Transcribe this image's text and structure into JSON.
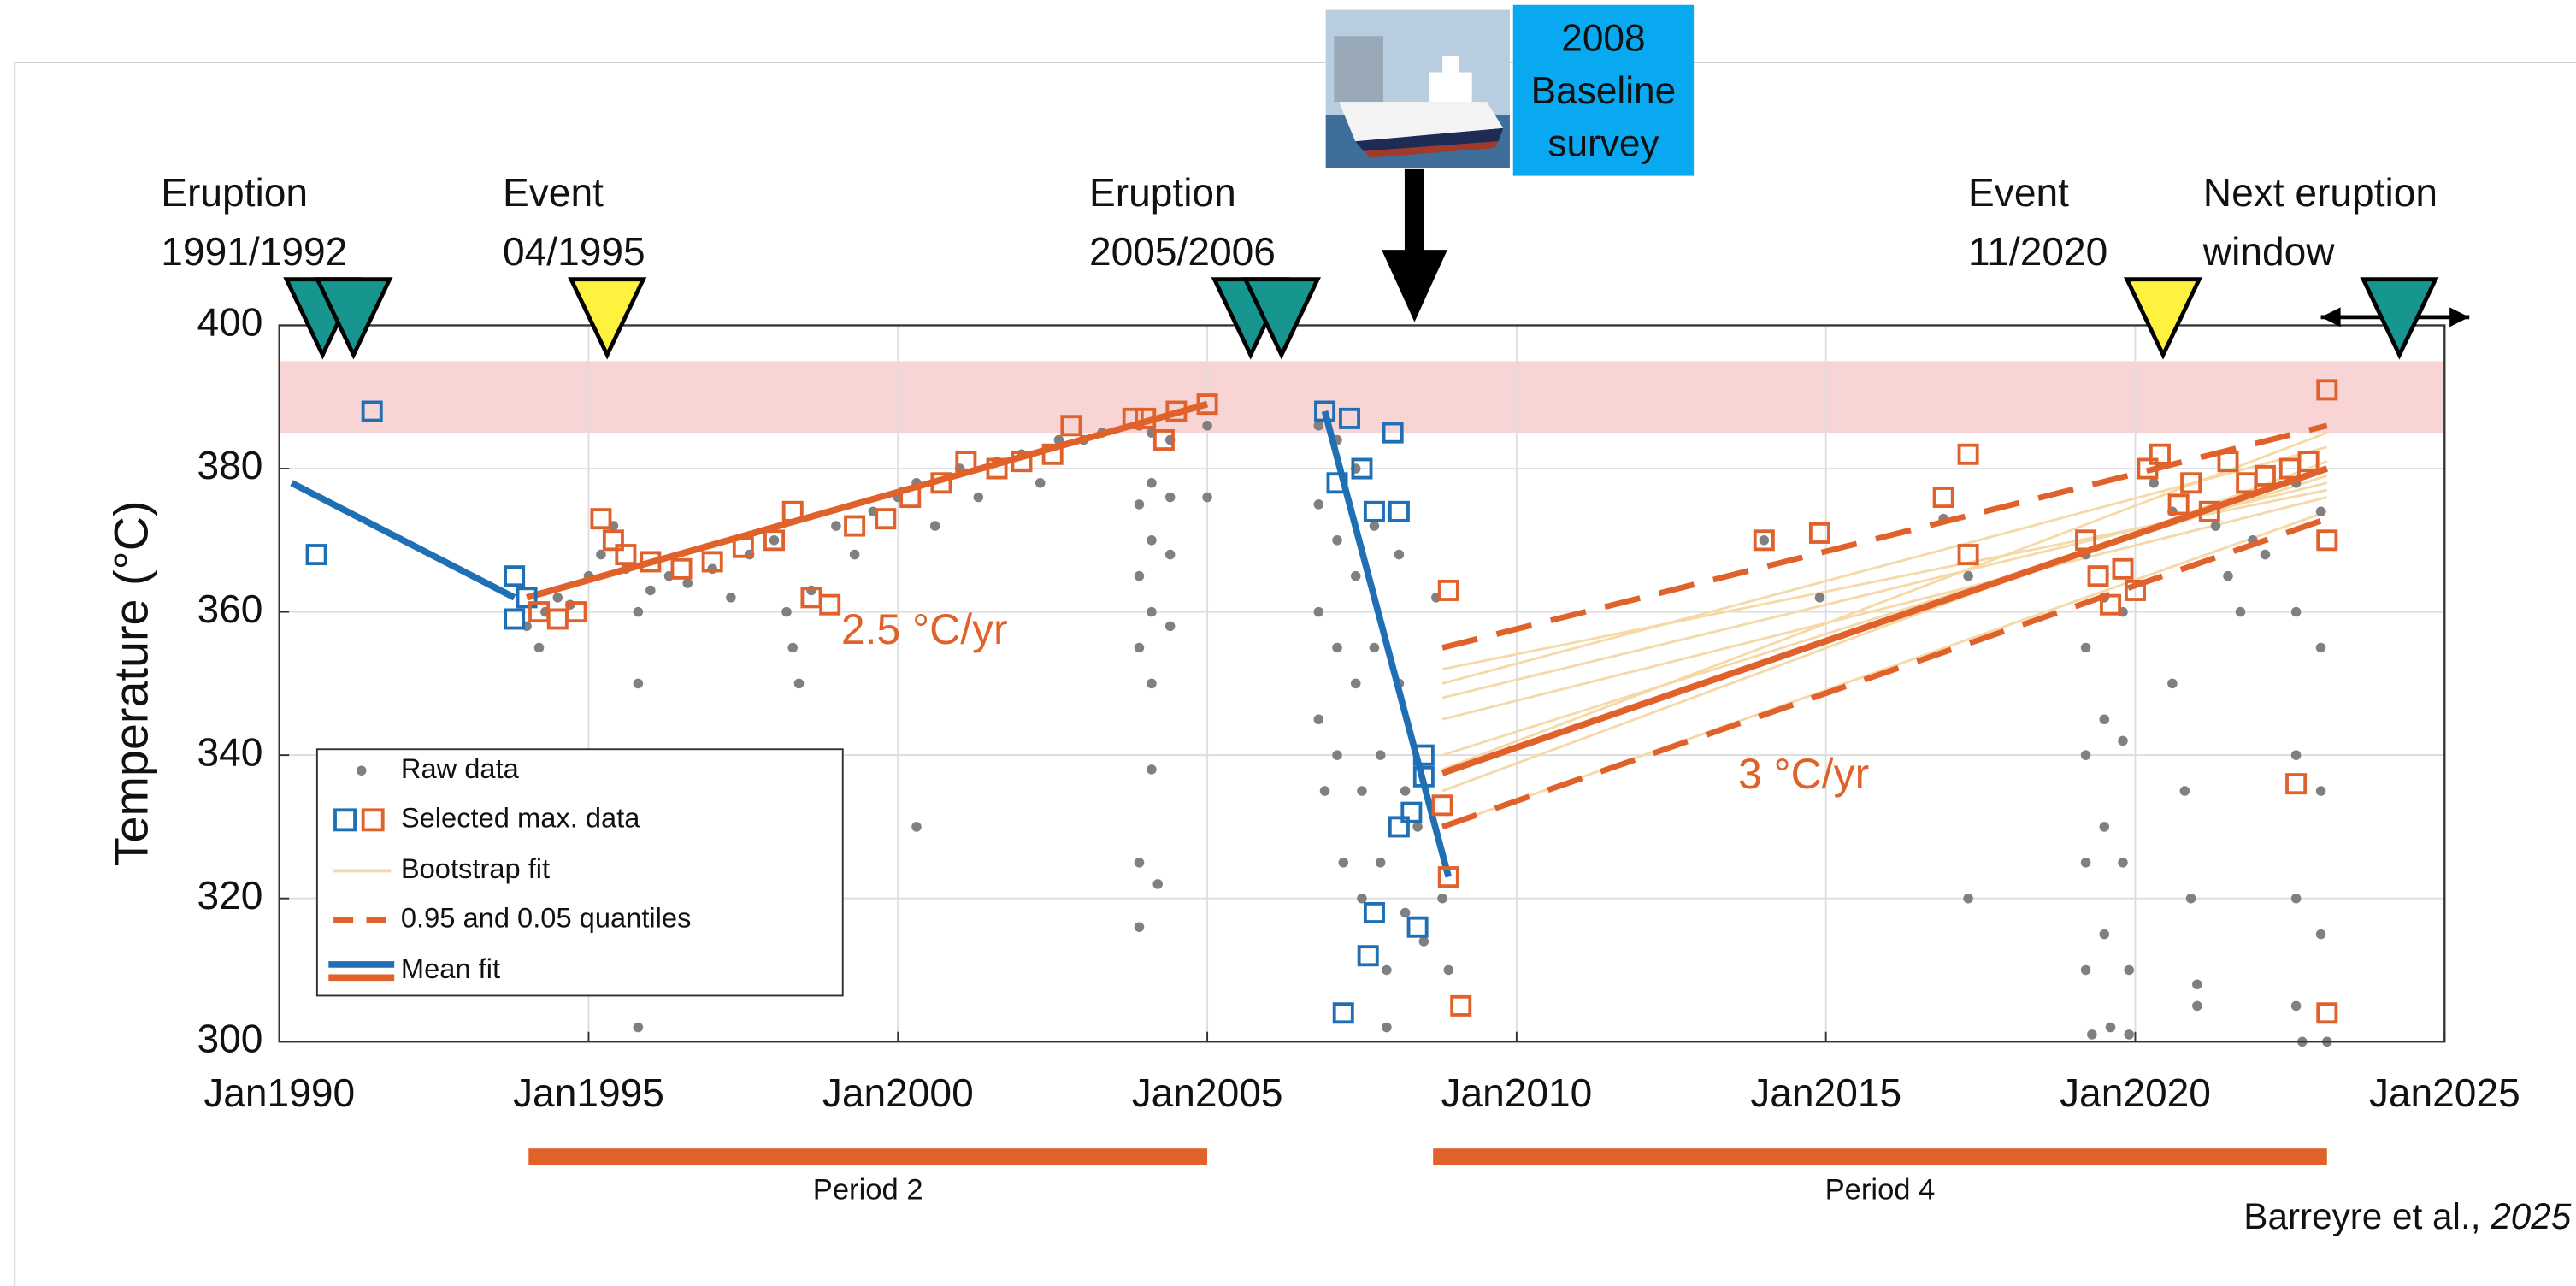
{
  "chart_data": {
    "type": "scatter",
    "y_label": "Temperature (°C)",
    "xlim": [
      1990,
      2025
    ],
    "ylim": [
      300,
      400
    ],
    "xticks": [
      {
        "value": 1990,
        "label": "Jan1990"
      },
      {
        "value": 1995,
        "label": "Jan1995"
      },
      {
        "value": 2000,
        "label": "Jan2000"
      },
      {
        "value": 2005,
        "label": "Jan2005"
      },
      {
        "value": 2010,
        "label": "Jan2010"
      },
      {
        "value": 2015,
        "label": "Jan2015"
      },
      {
        "value": 2020,
        "label": "Jan2020"
      },
      {
        "value": 2025,
        "label": "Jan2025"
      }
    ],
    "yticks": [
      300,
      320,
      340,
      360,
      380,
      400
    ],
    "grid": true,
    "shaded_range": [
      385,
      395
    ],
    "series": [
      {
        "style": "faint",
        "color": "#f5d9a8",
        "x": [
          2008.8,
          2023.1
        ],
        "values": [
          340,
          379
        ]
      },
      {
        "style": "faint",
        "color": "#f5d9a8",
        "x": [
          2008.8,
          2023.1
        ],
        "values": [
          345,
          376
        ]
      },
      {
        "style": "faint",
        "color": "#f5d9a8",
        "x": [
          2008.8,
          2023.1
        ],
        "values": [
          350,
          383
        ]
      },
      {
        "style": "faint",
        "color": "#f5d9a8",
        "x": [
          2008.8,
          2023.1
        ],
        "values": [
          335,
          381
        ]
      },
      {
        "style": "faint",
        "color": "#f5d9a8",
        "x": [
          2008.8,
          2023.1
        ],
        "values": [
          330,
          374
        ]
      },
      {
        "style": "faint",
        "color": "#f5d9a8",
        "x": [
          2008.8,
          2023.1
        ],
        "values": [
          348,
          378
        ]
      },
      {
        "style": "faint",
        "color": "#f5d9a8",
        "x": [
          2008.8,
          2023.1
        ],
        "values": [
          338,
          385
        ]
      },
      {
        "style": "faint",
        "color": "#f5d9a8",
        "x": [
          2008.8,
          2023.1
        ],
        "values": [
          352,
          377
        ]
      },
      {
        "style": "dots",
        "color": "#808080",
        "x": [
          1994.0,
          1994.2,
          1994.3,
          1994.5,
          1994.7,
          1995.0,
          1995.2,
          1995.4,
          1995.6,
          1995.8,
          1995.8,
          1995.8,
          1995.8,
          1995.8,
          1995.8,
          1995.8,
          1996.0,
          1996.3,
          1996.6,
          1997.0,
          1997.3,
          1997.6,
          1998.0,
          1998.2,
          1998.3,
          1998.4,
          1998.6,
          1999.0,
          1999.3,
          1999.6,
          2000.0,
          2000.3,
          2000.3,
          2000.6,
          2001.0,
          2001.3,
          2001.6,
          2002.0,
          2002.3,
          2002.6,
          2003.0,
          2003.3,
          2003.9,
          2003.9,
          2003.9,
          2003.9,
          2003.9,
          2003.9,
          2004.1,
          2004.1,
          2004.1,
          2004.1,
          2004.1,
          2004.1,
          2004.2,
          2004.4,
          2004.4,
          2004.4,
          2004.4,
          2005.0,
          2005.0,
          2006.8,
          2006.8,
          2006.8,
          2006.8,
          2006.9,
          2007.1,
          2007.1,
          2007.1,
          2007.1,
          2007.2,
          2007.4,
          2007.4,
          2007.4,
          2007.5,
          2007.5,
          2007.7,
          2007.7,
          2007.8,
          2007.8,
          2007.9,
          2007.9,
          2008.1,
          2008.1,
          2008.2,
          2008.2,
          2008.4,
          2008.5,
          2008.7,
          2008.8,
          2008.9,
          2014.0,
          2014.9,
          2016.9,
          2017.3,
          2017.3,
          2019.2,
          2019.2,
          2019.2,
          2019.2,
          2019.2,
          2019.3,
          2019.5,
          2019.5,
          2019.5,
          2019.5,
          2019.6,
          2019.8,
          2019.8,
          2019.8,
          2019.9,
          2019.9,
          2020.3,
          2020.6,
          2020.6,
          2020.8,
          2020.9,
          2021.0,
          2021.0,
          2021.3,
          2021.5,
          2021.7,
          2021.9,
          2022.1,
          2022.6,
          2022.6,
          2022.6,
          2022.6,
          2022.6,
          2022.7,
          2023.0,
          2023.0,
          2023.0,
          2023.0,
          2023.1
        ],
        "values": [
          358,
          355,
          360,
          362,
          361,
          365,
          368,
          372,
          366,
          360,
          350,
          340,
          330,
          320,
          310,
          302,
          363,
          365,
          364,
          366,
          362,
          368,
          370,
          360,
          355,
          350,
          363,
          372,
          368,
          374,
          376,
          378,
          330,
          372,
          380,
          376,
          381,
          382,
          378,
          384,
          384,
          385,
          386,
          375,
          365,
          355,
          325,
          316,
          385,
          378,
          370,
          360,
          350,
          338,
          322,
          384,
          376,
          368,
          358,
          386,
          376,
          386,
          375,
          360,
          345,
          335,
          384,
          370,
          355,
          340,
          325,
          380,
          365,
          350,
          335,
          320,
          372,
          355,
          340,
          325,
          310,
          302,
          368,
          350,
          335,
          318,
          330,
          314,
          362,
          320,
          310,
          370,
          362,
          373,
          365,
          320,
          368,
          355,
          340,
          325,
          310,
          301,
          362,
          345,
          330,
          315,
          302,
          360,
          342,
          325,
          310,
          301,
          378,
          374,
          350,
          335,
          320,
          305,
          308,
          372,
          365,
          360,
          370,
          368,
          378,
          360,
          340,
          320,
          305,
          300,
          374,
          355,
          335,
          315,
          300
        ]
      },
      {
        "style": "line",
        "color": "#1f6fb5",
        "x": [
          1990.2,
          1993.8
        ],
        "values": [
          378,
          362
        ]
      },
      {
        "style": "line",
        "color": "#1f6fb5",
        "x": [
          2006.9,
          2008.9
        ],
        "values": [
          388,
          323
        ]
      },
      {
        "style": "dashed",
        "color": "#e0622a",
        "x": [
          2008.8,
          2023.1
        ],
        "values": [
          355,
          386
        ]
      },
      {
        "style": "dashed",
        "color": "#e0622a",
        "x": [
          2008.8,
          2023.1
        ],
        "values": [
          330,
          373
        ]
      },
      {
        "style": "line",
        "color": "#e0622a",
        "x": [
          1994.0,
          2005.0
        ],
        "values": [
          362,
          389
        ]
      },
      {
        "style": "line",
        "color": "#e0622a",
        "x": [
          2008.8,
          2023.1
        ],
        "values": [
          337.5,
          380
        ]
      },
      {
        "style": "squares",
        "color": "#1f6fb5",
        "x": [
          1990.6,
          1991.5,
          1993.8,
          1993.8,
          1994.0,
          2006.9,
          2007.1,
          2007.3,
          2007.5,
          2007.7,
          2008.0,
          2008.1,
          2008.5,
          2008.5,
          2008.3,
          2008.1,
          2007.7,
          2007.6,
          2007.2,
          2008.4
        ],
        "values": [
          368,
          388,
          365,
          359,
          362,
          388,
          378,
          387,
          380,
          374,
          385,
          374,
          340,
          337,
          332,
          330,
          318,
          312,
          304,
          316
        ]
      },
      {
        "style": "squares",
        "color": "#e0622a",
        "x": [
          1994.2,
          1994.5,
          1994.8,
          1995.2,
          1995.4,
          1995.6,
          1996.0,
          1996.5,
          1997.0,
          1997.5,
          1998.0,
          1998.3,
          1998.6,
          1998.9,
          1999.3,
          1999.8,
          2000.2,
          2000.7,
          2001.1,
          2001.6,
          2002.0,
          2002.5,
          2002.8,
          2003.8,
          2004.0,
          2004.3,
          2004.5,
          2005.0,
          2008.9,
          2008.8,
          2008.9,
          2009.1,
          2014.0,
          2014.9,
          2016.9,
          2017.3,
          2017.3,
          2019.2,
          2019.4,
          2019.6,
          2019.8,
          2020.0,
          2020.2,
          2020.4,
          2020.7,
          2020.9,
          2021.2,
          2021.5,
          2021.8,
          2022.1,
          2022.5,
          2022.8,
          2022.6,
          2023.1,
          2023.1,
          2023.1
        ],
        "values": [
          360,
          359,
          360,
          373,
          370,
          368,
          367,
          366,
          367,
          369,
          370,
          374,
          362,
          361,
          372,
          373,
          376,
          378,
          381,
          380,
          381,
          382,
          386,
          387,
          387,
          384,
          388,
          389,
          363,
          333,
          323,
          305,
          370,
          371,
          376,
          382,
          368,
          370,
          365,
          361,
          366,
          363,
          380,
          382,
          375,
          378,
          374,
          381,
          378,
          379,
          380,
          381,
          336,
          391,
          370,
          304
        ]
      }
    ],
    "legend": [
      {
        "label": "Raw data"
      },
      {
        "label": "Selected max. data"
      },
      {
        "label": "Bootstrap fit"
      },
      {
        "label": "0.95 and 0.05 quantiles"
      },
      {
        "label": "Mean fit"
      }
    ],
    "markers": [
      {
        "label": [
          "Eruption",
          "1991/1992"
        ],
        "x": [
          1990.7,
          1991.2
        ],
        "color": "#17958f"
      },
      {
        "label": [
          "Event",
          "04/1995"
        ],
        "x": [
          1995.3
        ],
        "color": "#fff23f"
      },
      {
        "label": [
          "Eruption",
          "2005/2006"
        ],
        "x": [
          2005.7,
          2006.2
        ],
        "color": "#17958f"
      },
      {
        "label": [
          "Event",
          "11/2020"
        ],
        "x": [
          2020.45
        ],
        "color": "#fff23f"
      },
      {
        "label": [
          "Next eruption",
          "window"
        ],
        "x": [
          2024.27
        ],
        "color": "#17958f",
        "window": [
          2023.0,
          2025.4
        ]
      }
    ],
    "survey": {
      "label": [
        "2008",
        "Baseline",
        "survey"
      ],
      "x": 2008.35
    },
    "annotations": [
      "2.5 °C/yr",
      "3 °C/yr"
    ],
    "periods": [
      {
        "label": "Period 2",
        "start": 1994.03,
        "end": 2005.0
      },
      {
        "label": "Period 4",
        "start": 2008.65,
        "end": 2023.1
      }
    ],
    "citation": {
      "authors": "Barreyre et al., ",
      "year": "2025"
    }
  }
}
